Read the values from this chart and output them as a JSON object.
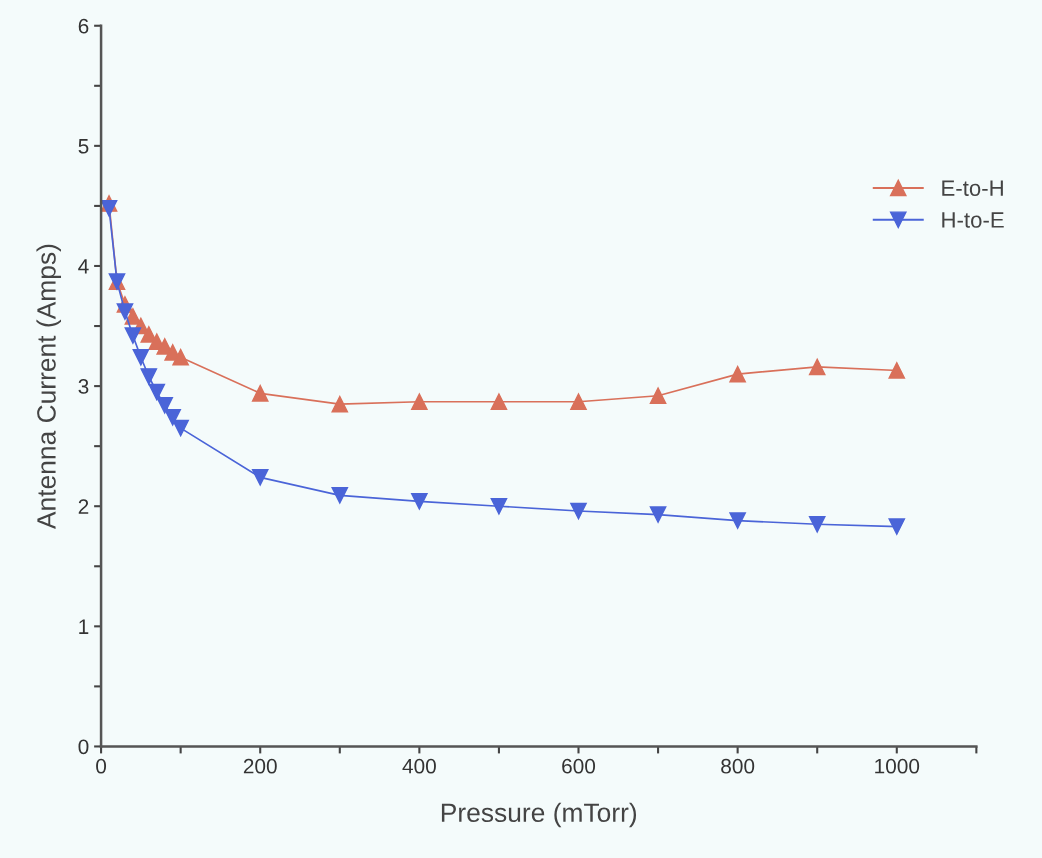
{
  "chart_data": {
    "type": "line",
    "xlabel": "Pressure (mTorr)",
    "ylabel": "Antenna Current (Amps)",
    "x": [
      10,
      20,
      30,
      40,
      50,
      60,
      70,
      80,
      90,
      100,
      200,
      300,
      400,
      500,
      600,
      700,
      800,
      900,
      1000
    ],
    "series": [
      {
        "name": "E-to-H",
        "color": "#d9705a",
        "marker": "triangle",
        "values": [
          4.52,
          3.87,
          3.68,
          3.58,
          3.5,
          3.43,
          3.37,
          3.33,
          3.28,
          3.24,
          2.94,
          2.85,
          2.87,
          2.87,
          2.87,
          2.92,
          3.1,
          3.16,
          3.13
        ]
      },
      {
        "name": "H-to-E",
        "color": "#4a64d8",
        "marker": "triangle_down",
        "values": [
          4.48,
          3.87,
          3.62,
          3.42,
          3.24,
          3.08,
          2.95,
          2.84,
          2.74,
          2.65,
          2.24,
          2.09,
          2.04,
          2.0,
          1.96,
          1.93,
          1.88,
          1.85,
          1.83
        ]
      }
    ],
    "xlim": [
      0,
      1100
    ],
    "xticks": [
      0,
      {
        "value": 100,
        "label": null
      },
      200,
      {
        "value": 300,
        "label": null
      },
      400,
      {
        "value": 500,
        "label": null
      },
      600,
      {
        "value": 700,
        "label": null
      },
      800,
      {
        "value": 900,
        "label": null
      },
      1000,
      {
        "value": 1100,
        "label": null
      }
    ],
    "ylim": [
      0,
      6
    ],
    "yticks": [
      0,
      {
        "value": 0.5,
        "label": null
      },
      1,
      {
        "value": 1.5,
        "label": null
      },
      2,
      {
        "value": 2.5,
        "label": null
      },
      3,
      {
        "value": 3.5,
        "label": null
      },
      4,
      {
        "value": 4.5,
        "label": null
      },
      5,
      {
        "value": 5.5,
        "label": null
      },
      6
    ],
    "grid": false,
    "legend": "right",
    "line_style": "solid"
  }
}
